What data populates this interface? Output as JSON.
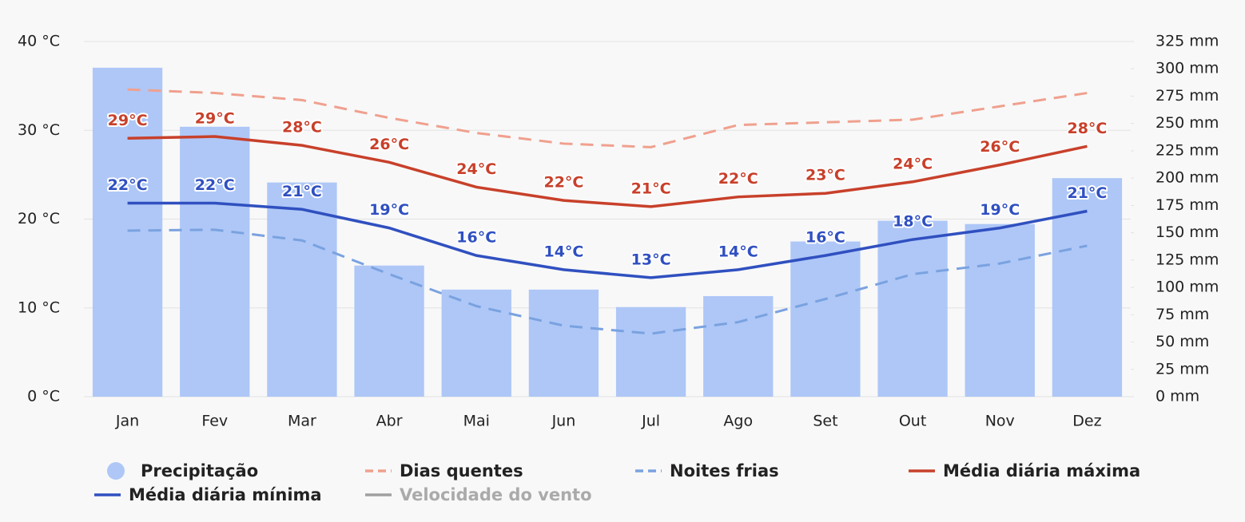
{
  "chart_data": {
    "type": "combo",
    "categories": [
      "Jan",
      "Fev",
      "Mar",
      "Abr",
      "Mai",
      "Jun",
      "Jul",
      "Ago",
      "Set",
      "Out",
      "Nov",
      "Dez"
    ],
    "ylim": [
      0,
      40
    ],
    "yticks": [
      {
        "value": 0,
        "label": "0 °C"
      },
      {
        "value": 10,
        "label": "10 °C"
      },
      {
        "value": 20,
        "label": "20 °C"
      },
      {
        "value": 30,
        "label": "30 °C"
      },
      {
        "value": 40,
        "label": "40 °C"
      }
    ],
    "y2lim": [
      0,
      325
    ],
    "y2ticks": [
      {
        "value": 0,
        "label": "0 mm"
      },
      {
        "value": 25,
        "label": "25 mm"
      },
      {
        "value": 50,
        "label": "50 mm"
      },
      {
        "value": 75,
        "label": "75 mm"
      },
      {
        "value": 100,
        "label": "100 mm"
      },
      {
        "value": 125,
        "label": "125 mm"
      },
      {
        "value": 150,
        "label": "150 mm"
      },
      {
        "value": 175,
        "label": "175 mm"
      },
      {
        "value": 200,
        "label": "200 mm"
      },
      {
        "value": 225,
        "label": "225 mm"
      },
      {
        "value": 250,
        "label": "250 mm"
      },
      {
        "value": 275,
        "label": "275 mm"
      },
      {
        "value": 300,
        "label": "300 mm"
      },
      {
        "value": 325,
        "label": "325 mm"
      }
    ],
    "grid": true,
    "legend": "bottom",
    "series": [
      {
        "name": "Precipitação",
        "type": "bar",
        "axis": "y2",
        "color": "#aec7f7",
        "values": [
          301,
          247,
          196,
          120,
          98,
          98,
          82,
          92,
          142,
          161,
          158,
          200
        ]
      },
      {
        "name": "Dias quentes",
        "type": "line",
        "style": "dashed",
        "color": "#f0a08e",
        "values": [
          34.6,
          34.2,
          33.4,
          31.4,
          29.7,
          28.5,
          28.1,
          30.6,
          30.9,
          31.2,
          32.7,
          34.2
        ]
      },
      {
        "name": "Noites frias",
        "type": "line",
        "style": "dashed",
        "color": "#7aa2e0",
        "values": [
          18.7,
          18.8,
          17.6,
          13.8,
          10.2,
          8.0,
          7.1,
          8.4,
          11.0,
          13.8,
          15.0,
          17.0
        ]
      },
      {
        "name": "Média diária máxima",
        "type": "line",
        "style": "solid",
        "color": "#c8402a",
        "values": [
          29.1,
          29.3,
          28.3,
          26.4,
          23.6,
          22.1,
          21.4,
          22.5,
          22.9,
          24.2,
          26.1,
          28.2
        ],
        "value_labels": [
          "29°C",
          "29°C",
          "28°C",
          "26°C",
          "24°C",
          "22°C",
          "21°C",
          "22°C",
          "23°C",
          "24°C",
          "26°C",
          "28°C"
        ]
      },
      {
        "name": "Média diária mínima",
        "type": "line",
        "style": "solid",
        "color": "#3050c0",
        "values": [
          21.8,
          21.8,
          21.1,
          19.0,
          15.9,
          14.3,
          13.4,
          14.3,
          15.9,
          17.7,
          19.0,
          20.9
        ],
        "value_labels": [
          "22°C",
          "22°C",
          "21°C",
          "19°C",
          "16°C",
          "14°C",
          "13°C",
          "14°C",
          "16°C",
          "18°C",
          "19°C",
          "21°C"
        ]
      },
      {
        "name": "Velocidade do vento",
        "type": "line",
        "style": "solid",
        "color": "#a0a0a0",
        "visible": false
      }
    ]
  }
}
